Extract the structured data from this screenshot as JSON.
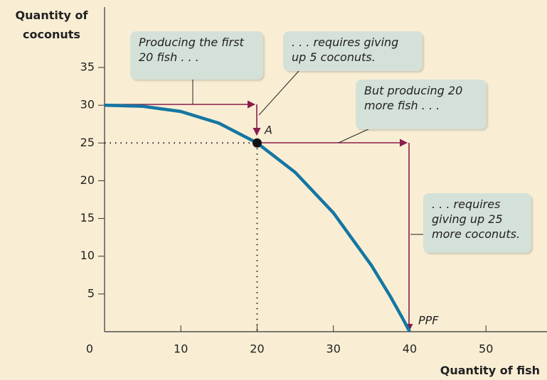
{
  "chart_data": {
    "type": "line",
    "xlabel": "Quantity of fish",
    "ylabel": "Quantity of coconuts",
    "x": [
      0,
      5,
      10,
      15,
      20,
      25,
      30,
      35,
      37.5,
      39,
      40
    ],
    "series": [
      {
        "name": "PPF",
        "color": "#1576a2",
        "values": [
          30,
          29.86,
          29.17,
          27.62,
          25,
          21.1,
          15.74,
          8.76,
          4.61,
          1.9,
          0
        ]
      }
    ],
    "xlim": [
      0,
      58
    ],
    "ylim": [
      0,
      43
    ],
    "xticks": [
      0,
      10,
      20,
      30,
      40,
      50
    ],
    "yticks": [
      5,
      10,
      15,
      20,
      25,
      30,
      35
    ],
    "point_index": 4,
    "annotations": [
      "Producing the first 20 fish . . .",
      ". . . requires giving up 5 coconuts.",
      "But producing 20 more fish . . .",
      ". . . requires giving up 25 more coconuts.",
      "A"
    ]
  }
}
